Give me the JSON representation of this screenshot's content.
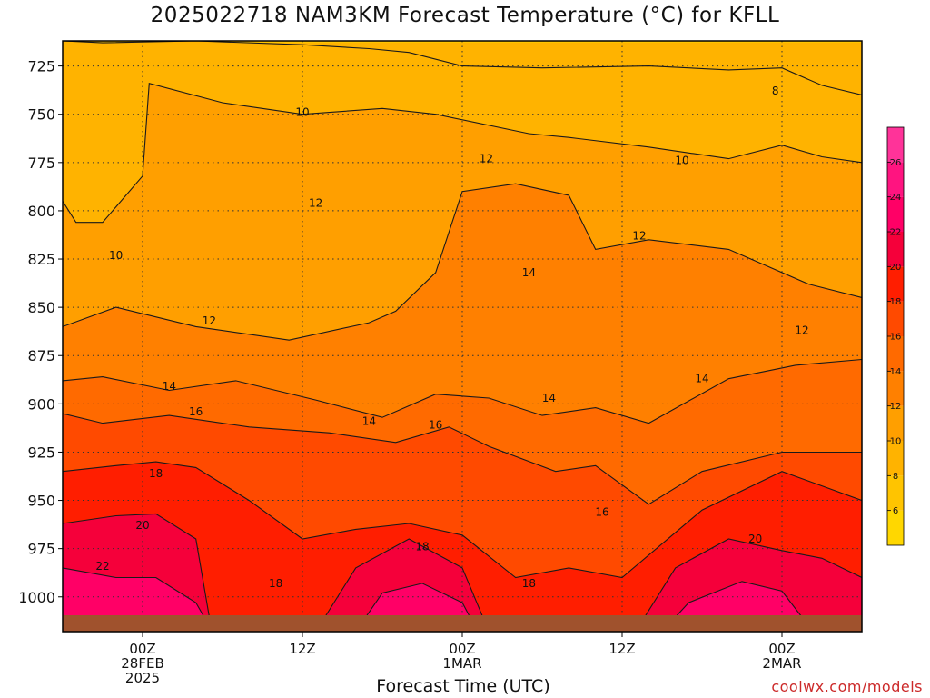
{
  "title": "2025022718 NAM3KM Forecast Temperature (°C) for KFLL",
  "xlabel": "Forecast Time (UTC)",
  "credit": "coolwx.com/models",
  "chart_data": {
    "type": "heatmap",
    "title": "2025022718 NAM3KM Forecast Temperature (°C) for KFLL",
    "xlabel": "Forecast Time (UTC)",
    "ylabel": "",
    "y_axis": {
      "ticks": [
        725,
        750,
        775,
        800,
        825,
        850,
        875,
        900,
        925,
        950,
        975,
        1000
      ],
      "range": [
        712,
        1018
      ],
      "inverted": true
    },
    "x_axis": {
      "ticks": [
        {
          "hour": 6,
          "lines": [
            "00Z",
            "28FEB",
            "2025"
          ]
        },
        {
          "hour": 18,
          "lines": [
            "12Z"
          ]
        },
        {
          "hour": 30,
          "lines": [
            "00Z",
            "1MAR"
          ]
        },
        {
          "hour": 42,
          "lines": [
            "12Z"
          ]
        },
        {
          "hour": 54,
          "lines": [
            "00Z",
            "2MAR"
          ]
        }
      ],
      "range": [
        0,
        60
      ]
    },
    "grid": true,
    "colorbar": {
      "placement": "right",
      "labels": [
        6,
        8,
        10,
        12,
        14,
        16,
        18,
        20,
        22,
        24,
        26
      ],
      "bins": [
        {
          "from": 4,
          "to": 6,
          "color": "#ffd700"
        },
        {
          "from": 6,
          "to": 8,
          "color": "#ffc400"
        },
        {
          "from": 8,
          "to": 10,
          "color": "#ffb300"
        },
        {
          "from": 10,
          "to": 12,
          "color": "#ff9f00"
        },
        {
          "from": 12,
          "to": 14,
          "color": "#ff8000"
        },
        {
          "from": 14,
          "to": 16,
          "color": "#ff6a00"
        },
        {
          "from": 16,
          "to": 18,
          "color": "#ff4a00"
        },
        {
          "from": 18,
          "to": 20,
          "color": "#ff1e00"
        },
        {
          "from": 20,
          "to": 22,
          "color": "#f5003a"
        },
        {
          "from": 22,
          "to": 24,
          "color": "#ff0066"
        },
        {
          "from": 24,
          "to": 26,
          "color": "#ff1480"
        },
        {
          "from": 26,
          "to": 28,
          "color": "#ff3399"
        }
      ]
    },
    "ground_color": "#a0522d",
    "isotherms": [
      {
        "value": 8,
        "p": [
          [
            0,
            712
          ],
          [
            3,
            713
          ],
          [
            10,
            712
          ],
          [
            18,
            714
          ],
          [
            23,
            716
          ],
          [
            26,
            718
          ],
          [
            30,
            725
          ],
          [
            36,
            726
          ],
          [
            44,
            725
          ],
          [
            50,
            727
          ],
          [
            54,
            726
          ],
          [
            57,
            735
          ],
          [
            60,
            740
          ]
        ]
      },
      {
        "value": 10,
        "p": [
          [
            0,
            795
          ],
          [
            1,
            806
          ],
          [
            3,
            806
          ],
          [
            6,
            782
          ],
          [
            6.5,
            734
          ],
          [
            12,
            744
          ],
          [
            18,
            750
          ],
          [
            24,
            747
          ],
          [
            28,
            750
          ],
          [
            35,
            760
          ],
          [
            38,
            762
          ],
          [
            44,
            767
          ],
          [
            50,
            773
          ],
          [
            54,
            766
          ],
          [
            57,
            772
          ],
          [
            60,
            775
          ]
        ]
      },
      {
        "value": 12,
        "p": [
          [
            0,
            860
          ],
          [
            4,
            850
          ],
          [
            10,
            860
          ],
          [
            17,
            867
          ],
          [
            23,
            858
          ],
          [
            25,
            852
          ],
          [
            28,
            832
          ],
          [
            30,
            790
          ],
          [
            34,
            786
          ],
          [
            38,
            792
          ],
          [
            40,
            820
          ],
          [
            44,
            815
          ],
          [
            50,
            820
          ],
          [
            56,
            838
          ],
          [
            60,
            845
          ]
        ]
      },
      {
        "value": 14,
        "p": [
          [
            0,
            888
          ],
          [
            3,
            886
          ],
          [
            8,
            893
          ],
          [
            13,
            888
          ],
          [
            19,
            898
          ],
          [
            24,
            907
          ],
          [
            28,
            895
          ],
          [
            32,
            897
          ],
          [
            36,
            906
          ],
          [
            40,
            902
          ],
          [
            44,
            910
          ],
          [
            50,
            887
          ],
          [
            55,
            880
          ],
          [
            60,
            877
          ]
        ]
      },
      {
        "value": 16,
        "p": [
          [
            0,
            905
          ],
          [
            3,
            910
          ],
          [
            8,
            906
          ],
          [
            14,
            912
          ],
          [
            20,
            915
          ],
          [
            25,
            920
          ],
          [
            29,
            912
          ],
          [
            32,
            922
          ],
          [
            37,
            935
          ],
          [
            40,
            932
          ],
          [
            44,
            952
          ],
          [
            48,
            935
          ],
          [
            54,
            925
          ],
          [
            60,
            925
          ]
        ]
      },
      {
        "value": 18,
        "p": [
          [
            0,
            935
          ],
          [
            4,
            932
          ],
          [
            7,
            930
          ],
          [
            10,
            933
          ],
          [
            14,
            950
          ],
          [
            18,
            970
          ],
          [
            22,
            965
          ],
          [
            26,
            962
          ],
          [
            30,
            968
          ],
          [
            34,
            990
          ],
          [
            38,
            985
          ],
          [
            42,
            990
          ],
          [
            48,
            955
          ],
          [
            54,
            935
          ],
          [
            60,
            950
          ]
        ]
      },
      {
        "value": 20,
        "p": [
          [
            0,
            962
          ],
          [
            4,
            958
          ],
          [
            7,
            957
          ],
          [
            10,
            970
          ],
          [
            11,
            1010
          ],
          [
            18,
            1018
          ]
        ]
      },
      {
        "value": 20,
        "p": [
          [
            19,
            1018
          ],
          [
            22,
            985
          ],
          [
            26,
            970
          ],
          [
            30,
            985
          ],
          [
            32,
            1018
          ]
        ]
      },
      {
        "value": 20,
        "p": [
          [
            43,
            1018
          ],
          [
            46,
            985
          ],
          [
            50,
            970
          ],
          [
            54,
            976
          ],
          [
            57,
            980
          ],
          [
            60,
            990
          ]
        ]
      },
      {
        "value": 22,
        "p": [
          [
            0,
            985
          ],
          [
            4,
            990
          ],
          [
            7,
            990
          ],
          [
            10,
            1003
          ],
          [
            11,
            1015
          ]
        ]
      },
      {
        "value": 22,
        "p": [
          [
            22,
            1018
          ],
          [
            24,
            998
          ],
          [
            27,
            993
          ],
          [
            30,
            1003
          ],
          [
            31,
            1016
          ]
        ]
      },
      {
        "value": 22,
        "p": [
          [
            45,
            1018
          ],
          [
            47,
            1003
          ],
          [
            51,
            992
          ],
          [
            54,
            997
          ],
          [
            56,
            1015
          ]
        ]
      }
    ],
    "contour_labels": [
      {
        "value": 8,
        "hour": 53.5,
        "p": 738
      },
      {
        "value": 10,
        "hour": 18.0,
        "p": 749
      },
      {
        "value": 12,
        "hour": 31.8,
        "p": 773
      },
      {
        "value": 10,
        "hour": 46.5,
        "p": 774
      },
      {
        "value": 12,
        "hour": 19.0,
        "p": 796
      },
      {
        "value": 10,
        "hour": 4.0,
        "p": 823
      },
      {
        "value": 12,
        "hour": 43.3,
        "p": 813
      },
      {
        "value": 14,
        "hour": 35.0,
        "p": 832
      },
      {
        "value": 12,
        "hour": 11.0,
        "p": 857
      },
      {
        "value": 12,
        "hour": 55.5,
        "p": 862
      },
      {
        "value": 14,
        "hour": 8.0,
        "p": 891
      },
      {
        "value": 14,
        "hour": 48.0,
        "p": 887
      },
      {
        "value": 14,
        "hour": 36.5,
        "p": 897
      },
      {
        "value": 16,
        "hour": 10.0,
        "p": 904
      },
      {
        "value": 14,
        "hour": 23.0,
        "p": 909
      },
      {
        "value": 16,
        "hour": 28.0,
        "p": 911
      },
      {
        "value": 18,
        "hour": 7.0,
        "p": 936
      },
      {
        "value": 16,
        "hour": 40.5,
        "p": 956
      },
      {
        "value": 20,
        "hour": 6.0,
        "p": 963
      },
      {
        "value": 18,
        "hour": 27.0,
        "p": 974
      },
      {
        "value": 20,
        "hour": 52.0,
        "p": 970
      },
      {
        "value": 22,
        "hour": 3.0,
        "p": 984
      },
      {
        "value": 18,
        "hour": 16.0,
        "p": 993
      },
      {
        "value": 18,
        "hour": 35.0,
        "p": 993
      }
    ]
  }
}
